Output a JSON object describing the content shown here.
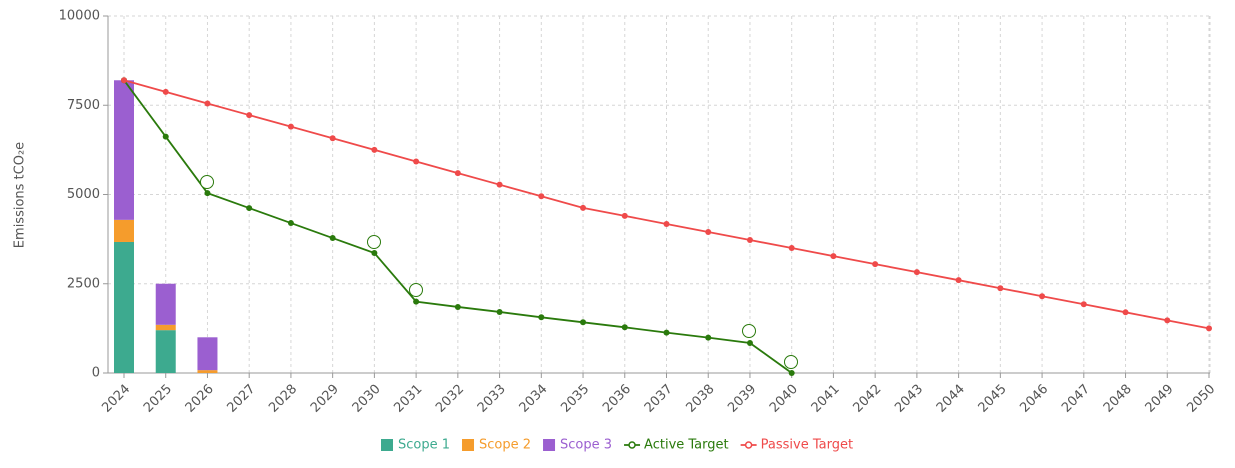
{
  "chart_data": {
    "type": "combo",
    "y_label": "Emissions tCO₂e",
    "categories": [
      "2024",
      "2025",
      "2026",
      "2027",
      "2028",
      "2029",
      "2030",
      "2031",
      "2032",
      "2033",
      "2034",
      "2035",
      "2036",
      "2037",
      "2038",
      "2039",
      "2040",
      "2041",
      "2042",
      "2043",
      "2044",
      "2045",
      "2046",
      "2047",
      "2048",
      "2049",
      "2050"
    ],
    "ylim": [
      0,
      10000
    ],
    "yticks": [
      0,
      2500,
      5000,
      7500,
      10000
    ],
    "grid": true,
    "stacked": true,
    "legend": "bottom",
    "series": [
      {
        "name": "Scope 1",
        "type": "bar",
        "color": "#3daa8f",
        "values": [
          3670,
          1200,
          0,
          null,
          null,
          null,
          null,
          null,
          null,
          null,
          null,
          null,
          null,
          null,
          null,
          null,
          null,
          null,
          null,
          null,
          null,
          null,
          null,
          null,
          null,
          null,
          null
        ]
      },
      {
        "name": "Scope 2",
        "type": "bar",
        "color": "#f59c2c",
        "values": [
          620,
          150,
          80,
          null,
          null,
          null,
          null,
          null,
          null,
          null,
          null,
          null,
          null,
          null,
          null,
          null,
          null,
          null,
          null,
          null,
          null,
          null,
          null,
          null,
          null,
          null,
          null
        ]
      },
      {
        "name": "Scope 3",
        "type": "bar",
        "color": "#9b5fd0",
        "values": [
          3910,
          1150,
          920,
          null,
          null,
          null,
          null,
          null,
          null,
          null,
          null,
          null,
          null,
          null,
          null,
          null,
          null,
          null,
          null,
          null,
          null,
          null,
          null,
          null,
          null,
          null,
          null
        ]
      },
      {
        "name": "Active Target",
        "type": "line",
        "color": "#2a7a0c",
        "values": [
          8200,
          6620,
          5040,
          4620,
          4200,
          3780,
          3360,
          2000,
          1850,
          1710,
          1560,
          1420,
          1280,
          1130,
          990,
          840,
          0,
          null,
          null,
          null,
          null,
          null,
          null,
          null,
          null,
          null,
          null
        ]
      },
      {
        "name": "Passive Target",
        "type": "line",
        "color": "#ef4a4a",
        "values": [
          8200,
          7875,
          7550,
          7225,
          6900,
          6575,
          6250,
          5925,
          5600,
          5275,
          4950,
          4625,
          4400,
          4175,
          3950,
          3725,
          3500,
          3275,
          3050,
          2825,
          2600,
          2375,
          2150,
          1925,
          1700,
          1475,
          1250
        ]
      }
    ]
  }
}
